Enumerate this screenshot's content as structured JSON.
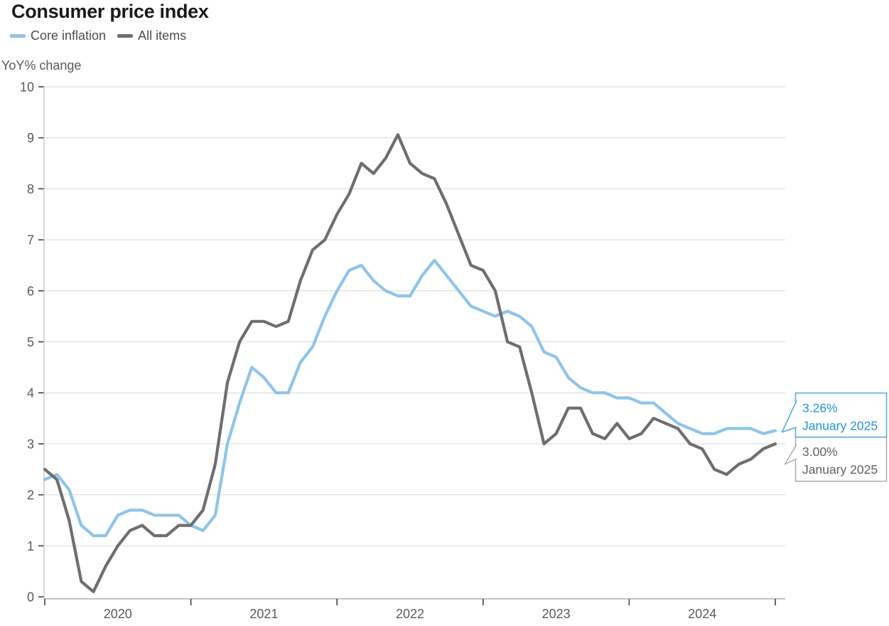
{
  "title": "Consumer price index",
  "legend": [
    {
      "label": "Core inflation",
      "color": "#8FC4E9"
    },
    {
      "label": "All items",
      "color": "#6E6E6E"
    }
  ],
  "callouts": [
    {
      "series": "Core inflation",
      "value": "3.26%",
      "date": "January 2025",
      "text_color": "#2097D4",
      "border_color": "#4FA9DC"
    },
    {
      "series": "All items",
      "value": "3.00%",
      "date": "January 2025",
      "text_color": "#616161",
      "border_color": "#ABABAB"
    }
  ],
  "chart_data": {
    "type": "line",
    "title": "Consumer price index",
    "ylabel": "YoY% change",
    "ylim": [
      0,
      10
    ],
    "y_ticks": [
      0,
      1,
      2,
      3,
      4,
      5,
      6,
      7,
      8,
      9,
      10
    ],
    "x_tick_labels": [
      "2020",
      "2021",
      "2022",
      "2023",
      "2024"
    ],
    "x_range": "monthly, January 2020 - January 2025",
    "grid": "horizontal",
    "legend_position": "top-left",
    "series": [
      {
        "name": "Core inflation",
        "color": "#8FC4E9",
        "values": [
          2.3,
          2.4,
          2.1,
          1.4,
          1.2,
          1.2,
          1.6,
          1.7,
          1.7,
          1.6,
          1.6,
          1.6,
          1.4,
          1.3,
          1.6,
          3.0,
          3.8,
          4.5,
          4.3,
          4.0,
          4.0,
          4.6,
          4.9,
          5.5,
          6.0,
          6.4,
          6.5,
          6.2,
          6.0,
          5.9,
          5.9,
          6.3,
          6.6,
          6.3,
          6.0,
          5.7,
          5.6,
          5.5,
          5.6,
          5.5,
          5.3,
          4.8,
          4.7,
          4.3,
          4.1,
          4.0,
          4.0,
          3.9,
          3.9,
          3.8,
          3.8,
          3.6,
          3.4,
          3.3,
          3.2,
          3.2,
          3.3,
          3.3,
          3.3,
          3.2,
          3.26
        ]
      },
      {
        "name": "All items",
        "color": "#6E6E6E",
        "values": [
          2.5,
          2.3,
          1.5,
          0.3,
          0.1,
          0.6,
          1.0,
          1.3,
          1.4,
          1.2,
          1.2,
          1.4,
          1.4,
          1.7,
          2.6,
          4.2,
          5.0,
          5.4,
          5.4,
          5.3,
          5.4,
          6.2,
          6.8,
          7.0,
          7.5,
          7.9,
          8.5,
          8.3,
          8.6,
          9.06,
          8.5,
          8.3,
          8.2,
          7.7,
          7.1,
          6.5,
          6.4,
          6.0,
          5.0,
          4.9,
          4.0,
          3.0,
          3.2,
          3.7,
          3.7,
          3.2,
          3.1,
          3.4,
          3.1,
          3.2,
          3.5,
          3.4,
          3.3,
          3.0,
          2.9,
          2.5,
          2.4,
          2.6,
          2.7,
          2.9,
          3.0
        ]
      }
    ]
  },
  "colors": {
    "grid": "#D9D9D9",
    "axis": "#A6A6A6",
    "tick": "#404040",
    "axis_text": "#595959",
    "title_text": "#1A1A1A",
    "legend_text": "#4D4D4D"
  }
}
